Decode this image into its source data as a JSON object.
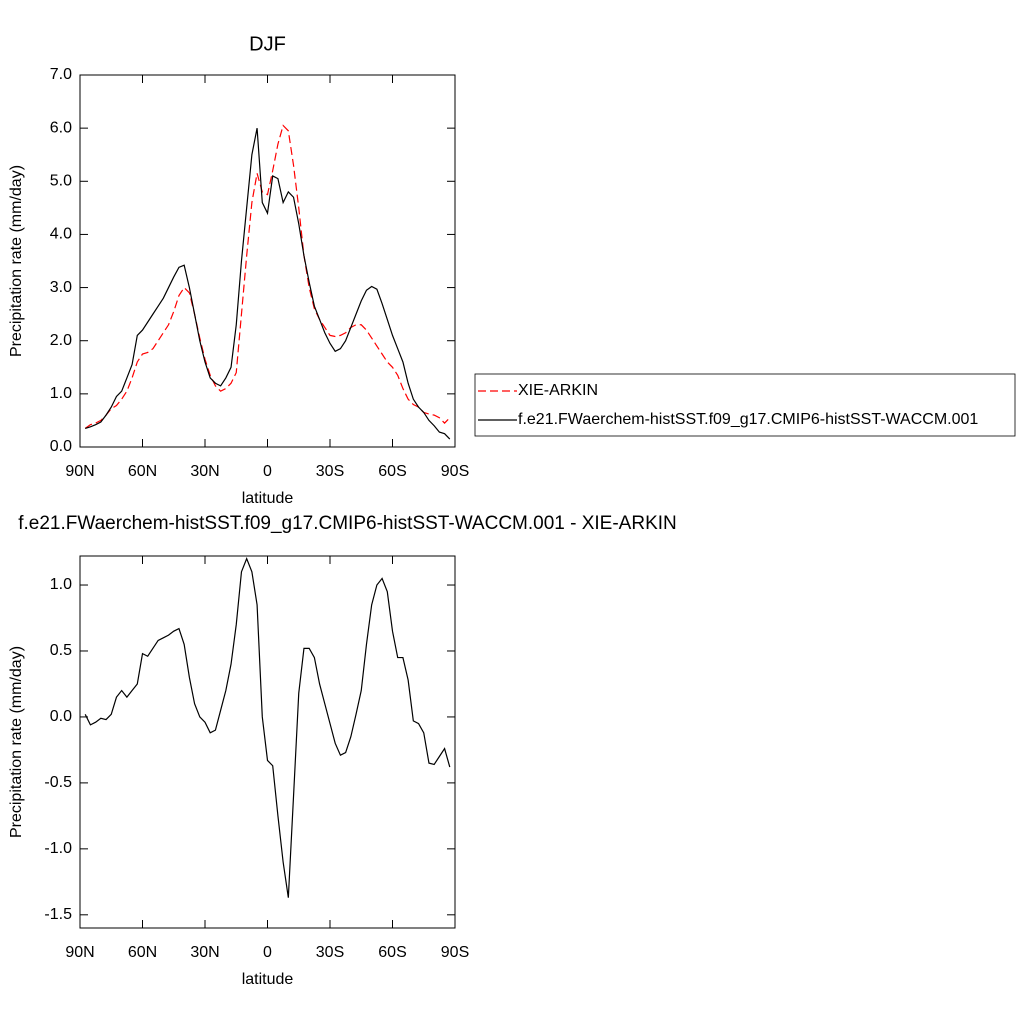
{
  "chart_data": [
    {
      "type": "line",
      "title": "DJF",
      "x_label": "latitude",
      "y_label": "Precipitation rate (mm/day)",
      "x": [
        87.5,
        85,
        82.5,
        80,
        77.5,
        75,
        72.5,
        70,
        67.5,
        65,
        62.5,
        60,
        57.5,
        55,
        52.5,
        50,
        47.5,
        45,
        42.5,
        40,
        37.5,
        35,
        32.5,
        30,
        27.5,
        25,
        22.5,
        20,
        17.5,
        15,
        12.5,
        10,
        7.5,
        5,
        2.5,
        0,
        -2.5,
        -5,
        -7.5,
        -10,
        -12.5,
        -15,
        -17.5,
        -20,
        -22.5,
        -25,
        -27.5,
        -30,
        -32.5,
        -35,
        -37.5,
        -40,
        -42.5,
        -45,
        -47.5,
        -50,
        -52.5,
        -55,
        -57.5,
        -60,
        -62.5,
        -65,
        -67.5,
        -70,
        -72.5,
        -75,
        -77.5,
        -80,
        -82.5,
        -85,
        -87.5
      ],
      "series": [
        {
          "name": "XIE-ARKIN",
          "color": "#ff0000",
          "style": "dashed",
          "values": [
            0.35,
            0.42,
            0.45,
            0.5,
            0.6,
            0.72,
            0.78,
            0.9,
            1.05,
            1.3,
            1.6,
            1.75,
            1.78,
            1.85,
            2.0,
            2.15,
            2.3,
            2.55,
            2.85,
            3.0,
            2.9,
            2.5,
            2.05,
            1.65,
            1.35,
            1.15,
            1.05,
            1.1,
            1.2,
            1.4,
            2.5,
            3.6,
            4.6,
            5.15,
            4.8,
            4.75,
            5.2,
            5.7,
            6.05,
            5.95,
            5.3,
            4.5,
            3.6,
            3.0,
            2.6,
            2.4,
            2.25,
            2.1,
            2.08,
            2.1,
            2.15,
            2.25,
            2.3,
            2.3,
            2.2,
            2.05,
            1.9,
            1.75,
            1.6,
            1.5,
            1.35,
            1.1,
            0.9,
            0.8,
            0.75,
            0.65,
            0.62,
            0.6,
            0.55,
            0.45,
            0.55
          ]
        },
        {
          "name": "f.e21.FWaerchem-histSST.f09_g17.CMIP6-histSST-WACCM.001",
          "color": "#000000",
          "style": "solid",
          "values": [
            0.35,
            0.38,
            0.42,
            0.47,
            0.6,
            0.75,
            0.95,
            1.05,
            1.3,
            1.55,
            2.1,
            2.2,
            2.35,
            2.5,
            2.65,
            2.8,
            3.0,
            3.2,
            3.38,
            3.42,
            3.0,
            2.5,
            2.0,
            1.6,
            1.3,
            1.2,
            1.15,
            1.3,
            1.5,
            2.3,
            3.5,
            4.5,
            5.5,
            6.0,
            4.6,
            4.4,
            5.1,
            5.05,
            4.6,
            4.8,
            4.7,
            4.2,
            3.6,
            3.1,
            2.65,
            2.4,
            2.15,
            1.95,
            1.8,
            1.85,
            2.0,
            2.25,
            2.5,
            2.75,
            2.95,
            3.02,
            2.97,
            2.7,
            2.4,
            2.1,
            1.85,
            1.6,
            1.2,
            0.9,
            0.75,
            0.65,
            0.5,
            0.4,
            0.28,
            0.25,
            0.15
          ]
        }
      ],
      "xlim": [
        90,
        -90
      ],
      "xticks": [
        {
          "value": 90,
          "label": "90N"
        },
        {
          "value": 60,
          "label": "60N"
        },
        {
          "value": 30,
          "label": "30N"
        },
        0,
        {
          "value": -30,
          "label": "30S"
        },
        {
          "value": -60,
          "label": "60S"
        },
        {
          "value": -90,
          "label": "90S"
        }
      ],
      "ylim": [
        0,
        7
      ],
      "yticks": [
        {
          "value": 0,
          "label": "0.0"
        },
        {
          "value": 1,
          "label": "1.0"
        },
        {
          "value": 2,
          "label": "2.0"
        },
        {
          "value": 3,
          "label": "3.0"
        },
        {
          "value": 4,
          "label": "4.0"
        },
        {
          "value": 5,
          "label": "5.0"
        },
        {
          "value": 6,
          "label": "6.0"
        },
        {
          "value": 7,
          "label": "7.0"
        }
      ],
      "legend": "right"
    },
    {
      "type": "line",
      "title": "f.e21.FWaerchem-histSST.f09_g17.CMIP6-histSST-WACCM.001 - XIE-ARKIN",
      "x_label": "latitude",
      "y_label": "Precipitation rate (mm/day)",
      "x": [
        87.5,
        85,
        82.5,
        80,
        77.5,
        75,
        72.5,
        70,
        67.5,
        65,
        62.5,
        60,
        57.5,
        55,
        52.5,
        50,
        47.5,
        45,
        42.5,
        40,
        37.5,
        35,
        32.5,
        30,
        27.5,
        25,
        22.5,
        20,
        17.5,
        15,
        12.5,
        10,
        7.5,
        5,
        2.5,
        0,
        -2.5,
        -5,
        -7.5,
        -10,
        -12.5,
        -15,
        -17.5,
        -20,
        -22.5,
        -25,
        -27.5,
        -30,
        -32.5,
        -35,
        -37.5,
        -40,
        -42.5,
        -45,
        -47.5,
        -50,
        -52.5,
        -55,
        -57.5,
        -60,
        -62.5,
        -65,
        -67.5,
        -70,
        -72.5,
        -75,
        -77.5,
        -80,
        -82.5,
        -85,
        -87.5
      ],
      "series": [
        {
          "color": "#000000",
          "style": "solid",
          "values": [
            0.02,
            -0.06,
            -0.04,
            -0.01,
            -0.02,
            0.02,
            0.15,
            0.2,
            0.15,
            0.2,
            0.25,
            0.48,
            0.46,
            0.52,
            0.58,
            0.6,
            0.62,
            0.65,
            0.67,
            0.55,
            0.3,
            0.1,
            0.0,
            -0.04,
            -0.12,
            -0.1,
            0.05,
            0.2,
            0.4,
            0.7,
            1.1,
            1.2,
            1.1,
            0.85,
            0.0,
            -0.33,
            -0.37,
            -0.75,
            -1.1,
            -1.37,
            -0.6,
            0.18,
            0.52,
            0.52,
            0.45,
            0.25,
            0.1,
            -0.05,
            -0.2,
            -0.29,
            -0.27,
            -0.15,
            0.02,
            0.2,
            0.55,
            0.85,
            1.0,
            1.05,
            0.95,
            0.65,
            0.45,
            0.45,
            0.28,
            -0.03,
            -0.05,
            -0.12,
            -0.35,
            -0.36,
            -0.3,
            -0.24,
            -0.38
          ]
        }
      ],
      "xlim": [
        90,
        -90
      ],
      "xticks": [
        {
          "value": 90,
          "label": "90N"
        },
        {
          "value": 60,
          "label": "60N"
        },
        {
          "value": 30,
          "label": "30N"
        },
        0,
        {
          "value": -30,
          "label": "30S"
        },
        {
          "value": -60,
          "label": "60S"
        },
        {
          "value": -90,
          "label": "90S"
        }
      ],
      "ylim": [
        -1.6,
        1.22
      ],
      "yticks": [
        {
          "value": -1.5,
          "label": "-1.5"
        },
        {
          "value": -1,
          "label": "-1.0"
        },
        {
          "value": -0.5,
          "label": "-0.5"
        },
        {
          "value": 0,
          "label": "0.0"
        },
        {
          "value": 0.5,
          "label": "0.5"
        },
        {
          "value": 1,
          "label": "1.0"
        }
      ]
    }
  ]
}
